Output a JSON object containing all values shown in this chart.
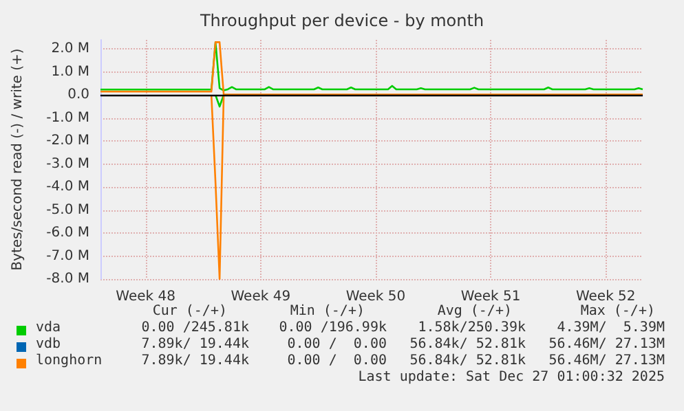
{
  "chart_data": {
    "type": "line",
    "title": "Throughput per device - by month",
    "ylabel": "Bytes/second read (-) / write (+)",
    "categories": [
      null,
      null,
      null,
      null,
      null,
      null,
      null,
      null,
      null,
      null,
      null,
      "Week 48",
      null,
      null,
      null,
      null,
      null,
      null,
      null,
      null,
      null,
      null,
      null,
      null,
      null,
      null,
      null,
      null,
      null,
      null,
      null,
      null,
      null,
      null,
      null,
      null,
      null,
      null,
      null,
      "Week 49",
      null,
      null,
      null,
      null,
      null,
      null,
      null,
      null,
      null,
      null,
      null,
      null,
      null,
      null,
      null,
      null,
      null,
      null,
      null,
      null,
      null,
      null,
      null,
      null,
      null,
      null,
      null,
      "Week 50",
      null,
      null,
      null,
      null,
      null,
      null,
      null,
      null,
      null,
      null,
      null,
      null,
      null,
      null,
      null,
      null,
      null,
      null,
      null,
      null,
      null,
      null,
      null,
      null,
      null,
      null,
      null,
      "Week 51",
      null,
      null,
      null,
      null,
      null,
      null,
      null,
      null,
      null,
      null,
      null,
      null,
      null,
      null,
      null,
      null,
      null,
      null,
      null,
      null,
      null,
      null,
      null,
      null,
      null,
      null,
      null,
      "Week 52",
      null,
      null,
      null,
      null,
      null,
      null,
      null,
      null,
      null
    ],
    "ylim": [
      -8000000,
      2400000
    ],
    "yticks": [
      {
        "value": -8000000,
        "label": "-8.0 M"
      },
      {
        "value": -7000000,
        "label": "-7.0 M"
      },
      {
        "value": -6000000,
        "label": "-6.0 M"
      },
      {
        "value": -5000000,
        "label": "-5.0 M"
      },
      {
        "value": -4000000,
        "label": "-4.0 M"
      },
      {
        "value": -3000000,
        "label": "-3.0 M"
      },
      {
        "value": -2000000,
        "label": "-2.0 M"
      },
      {
        "value": -1000000,
        "label": "-1.0 M"
      },
      {
        "value": 0,
        "label": "0.0"
      },
      {
        "value": 1000000,
        "label": "1.0 M"
      },
      {
        "value": 2000000,
        "label": "2.0 M"
      }
    ],
    "grid": true,
    "legend": "bottom",
    "marker": "none",
    "line_style": "solid",
    "ref_lines": [
      {
        "axis": "y",
        "value": 0,
        "label": null,
        "color": "#000000"
      }
    ],
    "series": [
      {
        "name": "vda",
        "color": "#00cc00",
        "values": [
          240000,
          240000,
          240000,
          240000,
          240000,
          240000,
          240000,
          240000,
          240000,
          240000,
          240000,
          240000,
          240000,
          240000,
          240000,
          240000,
          240000,
          240000,
          240000,
          240000,
          240000,
          240000,
          240000,
          240000,
          240000,
          240000,
          240000,
          240000,
          2300000,
          300000,
          200000,
          250000,
          350000,
          250000,
          250000,
          250000,
          250000,
          250000,
          250000,
          250000,
          250000,
          350000,
          250000,
          250000,
          250000,
          250000,
          250000,
          250000,
          250000,
          250000,
          250000,
          250000,
          250000,
          330000,
          250000,
          250000,
          250000,
          250000,
          250000,
          250000,
          250000,
          330000,
          250000,
          250000,
          250000,
          250000,
          250000,
          250000,
          250000,
          250000,
          250000,
          400000,
          250000,
          250000,
          250000,
          250000,
          250000,
          250000,
          300000,
          250000,
          250000,
          250000,
          250000,
          250000,
          250000,
          250000,
          250000,
          250000,
          250000,
          250000,
          250000,
          320000,
          250000,
          250000,
          250000,
          250000,
          250000,
          250000,
          250000,
          250000,
          250000,
          250000,
          250000,
          250000,
          250000,
          250000,
          250000,
          250000,
          250000,
          330000,
          250000,
          250000,
          250000,
          250000,
          250000,
          250000,
          250000,
          250000,
          250000,
          300000,
          250000,
          250000,
          250000,
          250000,
          250000,
          250000,
          250000,
          250000,
          250000,
          250000,
          250000,
          300000,
          250000
        ]
      },
      {
        "color": "#00cc00",
        "values": [
          null,
          null,
          null,
          null,
          null,
          null,
          null,
          null,
          null,
          null,
          null,
          null,
          null,
          null,
          null,
          null,
          null,
          null,
          null,
          null,
          null,
          null,
          null,
          null,
          null,
          null,
          null,
          null,
          0,
          -500000,
          0,
          null,
          null,
          null,
          null,
          null,
          null,
          null,
          null,
          null,
          null,
          null,
          null,
          null,
          null,
          null,
          null,
          null,
          null,
          null,
          null,
          null,
          null,
          null,
          null,
          null,
          null,
          null,
          null,
          null,
          null,
          null,
          null,
          null,
          null,
          null,
          null,
          null,
          null,
          null,
          null,
          null,
          null,
          null,
          null,
          null,
          null,
          null,
          null,
          null,
          null,
          null,
          null,
          null,
          null,
          null,
          null,
          null,
          null,
          null,
          null,
          null,
          null,
          null,
          null,
          null,
          null,
          null,
          null,
          null,
          null,
          null,
          null,
          null,
          null,
          null,
          null,
          null,
          null,
          null,
          null,
          null,
          null,
          null,
          null,
          null,
          null,
          null,
          null,
          null,
          null,
          null,
          null,
          null,
          null,
          null,
          null,
          null,
          null,
          null,
          null,
          null,
          null
        ]
      },
      {
        "name": "vdb",
        "color": "#0066b3",
        "values": [
          null,
          null,
          null,
          null,
          null,
          null,
          null,
          null,
          null,
          null,
          null,
          null,
          null,
          null,
          null,
          null,
          null,
          null,
          null,
          null,
          null,
          null,
          null,
          null,
          null,
          null,
          null,
          null,
          null,
          null,
          null,
          null,
          null,
          null,
          null,
          null,
          null,
          null,
          null,
          null,
          null,
          null,
          null,
          null,
          null,
          null,
          null,
          null,
          null,
          null,
          null,
          null,
          null,
          null,
          null,
          null,
          null,
          null,
          null,
          null,
          null,
          null,
          null,
          null,
          null,
          null,
          null,
          null,
          null,
          null,
          null,
          null,
          null,
          null,
          null,
          null,
          null,
          null,
          null,
          null,
          null,
          null,
          null,
          null,
          null,
          null,
          null,
          null,
          null,
          null,
          null,
          null,
          null,
          null,
          null,
          null,
          null,
          null,
          null,
          null,
          null,
          null,
          null,
          null,
          null,
          null,
          null,
          null,
          null,
          null,
          null,
          null,
          null,
          null,
          null,
          null,
          null,
          null,
          null,
          null,
          null,
          null,
          null,
          null,
          null,
          null,
          null,
          null,
          null,
          null,
          null,
          null,
          null
        ]
      },
      {
        "name": "longhorn",
        "color": "#ff8000",
        "values": [
          150000,
          150000,
          150000,
          150000,
          150000,
          150000,
          150000,
          150000,
          150000,
          150000,
          150000,
          150000,
          150000,
          150000,
          150000,
          150000,
          150000,
          150000,
          150000,
          150000,
          150000,
          150000,
          150000,
          150000,
          150000,
          150000,
          150000,
          150000,
          2300000,
          2300000,
          20000,
          20000,
          20000,
          20000,
          20000,
          20000,
          20000,
          20000,
          20000,
          20000,
          20000,
          20000,
          20000,
          20000,
          20000,
          20000,
          20000,
          20000,
          20000,
          20000,
          20000,
          20000,
          20000,
          20000,
          20000,
          20000,
          20000,
          20000,
          20000,
          20000,
          20000,
          20000,
          20000,
          20000,
          20000,
          20000,
          20000,
          20000,
          20000,
          20000,
          20000,
          20000,
          20000,
          20000,
          20000,
          20000,
          20000,
          20000,
          20000,
          20000,
          20000,
          20000,
          20000,
          20000,
          20000,
          20000,
          20000,
          20000,
          20000,
          20000,
          20000,
          20000,
          20000,
          20000,
          20000,
          20000,
          20000,
          20000,
          20000,
          20000,
          20000,
          20000,
          20000,
          20000,
          20000,
          20000,
          20000,
          20000,
          20000,
          20000,
          20000,
          20000,
          20000,
          20000,
          20000,
          20000,
          20000,
          20000,
          20000,
          20000,
          20000,
          20000,
          20000,
          20000,
          20000,
          20000,
          20000,
          20000,
          20000,
          20000,
          20000,
          20000,
          20000
        ]
      },
      {
        "color": "#ff8000",
        "values": [
          null,
          null,
          null,
          null,
          null,
          null,
          null,
          null,
          null,
          null,
          null,
          null,
          null,
          null,
          null,
          null,
          null,
          null,
          null,
          null,
          null,
          null,
          null,
          null,
          null,
          null,
          null,
          0,
          -3800000,
          -8000000,
          0,
          null,
          null,
          null,
          null,
          null,
          null,
          null,
          null,
          null,
          null,
          null,
          null,
          null,
          null,
          null,
          null,
          null,
          null,
          null,
          null,
          null,
          null,
          null,
          null,
          null,
          null,
          null,
          null,
          null,
          null,
          null,
          null,
          null,
          null,
          null,
          null,
          null,
          null,
          null,
          null,
          null,
          null,
          null,
          null,
          null,
          null,
          null,
          null,
          null,
          null,
          null,
          null,
          null,
          null,
          null,
          null,
          null,
          null,
          null,
          null,
          null,
          null,
          null,
          null,
          null,
          null,
          null,
          null,
          null,
          null,
          null,
          null,
          null,
          null,
          null,
          null,
          null,
          null,
          null,
          null,
          null,
          null,
          null,
          null,
          null,
          null,
          null,
          null,
          null,
          null,
          null,
          null,
          null,
          null,
          null,
          null,
          null,
          null,
          null,
          null,
          null,
          null
        ]
      }
    ],
    "annotations": [
      "Cur (-/+)",
      "Min (-/+)",
      "Avg (-/+)",
      "Max (-/+)",
      "0.00 /245.81k",
      "0.00 /196.99k",
      "1.58k/250.39k",
      "4.39M/  5.39M",
      "7.89k/ 19.44k",
      "0.00 /  0.00",
      "56.84k/ 52.81k",
      "56.46M/ 27.13M",
      "7.89k/ 19.44k",
      "0.00 /  0.00",
      "56.84k/ 52.81k",
      "56.46M/ 27.13M",
      "Last update: Sat Dec 27 01:00:32 2025"
    ]
  }
}
